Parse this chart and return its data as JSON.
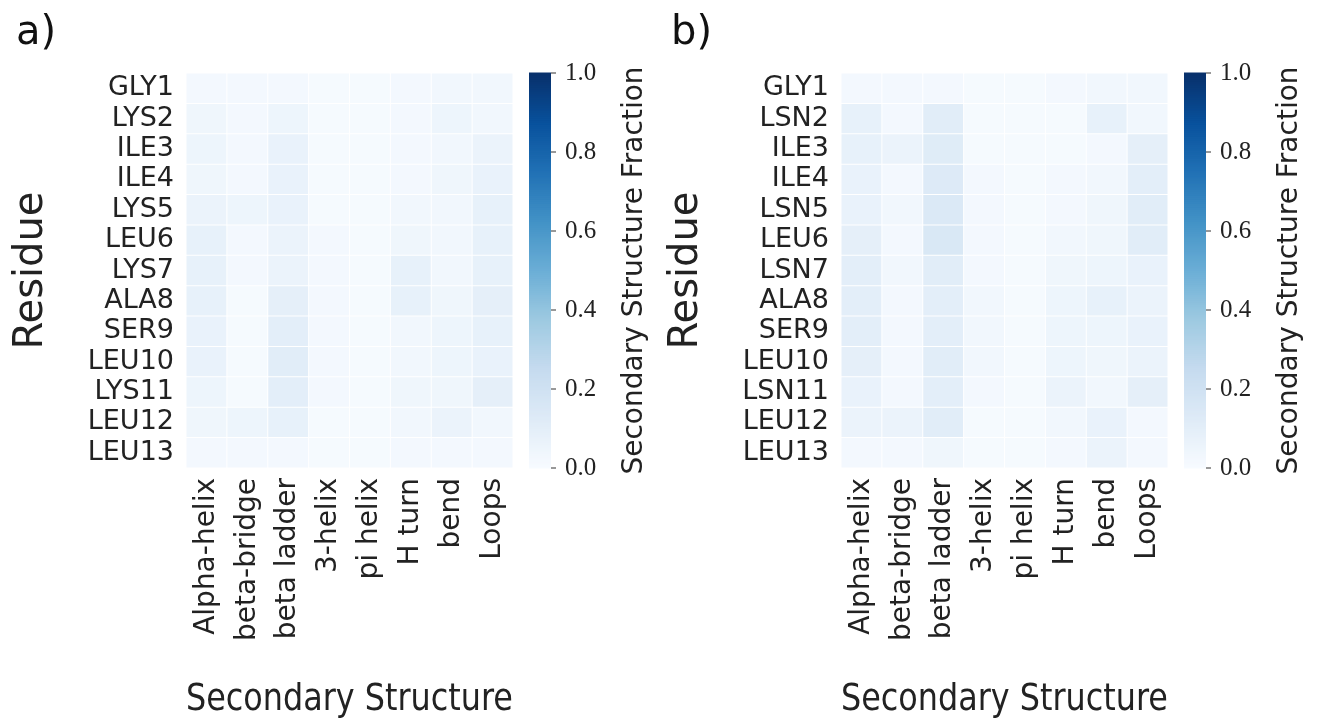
{
  "chart_data": [
    {
      "type": "heatmap",
      "annotations": [
        "a)"
      ],
      "xlabel": "Secondary Structure",
      "ylabel": "Residue",
      "clabel": "Secondary Structure Fraction",
      "categories": [
        "Alpha-helix",
        "beta-bridge",
        "beta ladder",
        "3-helix",
        "pi helix",
        "H turn",
        "bend",
        "Loops"
      ],
      "y_categories": [
        "GLY1",
        "LYS2",
        "ILE3",
        "ILE4",
        "LYS5",
        "LEU6",
        "LYS7",
        "ALA8",
        "SER9",
        "LEU10",
        "LYS11",
        "LEU12",
        "LEU13"
      ],
      "cells": [
        [
          0.02,
          0.02,
          0.02,
          0.01,
          0.01,
          0.02,
          0.03,
          0.03
        ],
        [
          0.04,
          0.02,
          0.05,
          0.01,
          0.01,
          0.02,
          0.05,
          0.03
        ],
        [
          0.05,
          0.02,
          0.07,
          0.01,
          0.01,
          0.02,
          0.03,
          0.06
        ],
        [
          0.04,
          0.02,
          0.07,
          0.01,
          0.01,
          0.02,
          0.04,
          0.07
        ],
        [
          0.06,
          0.05,
          0.07,
          0.01,
          0.01,
          0.03,
          0.03,
          0.08
        ],
        [
          0.08,
          0.02,
          0.06,
          0.02,
          0.01,
          0.04,
          0.03,
          0.08
        ],
        [
          0.08,
          0.02,
          0.06,
          0.02,
          0.01,
          0.08,
          0.03,
          0.08
        ],
        [
          0.08,
          0.01,
          0.09,
          0.02,
          0.01,
          0.08,
          0.04,
          0.09
        ],
        [
          0.07,
          0.01,
          0.1,
          0.02,
          0.01,
          0.03,
          0.05,
          0.08
        ],
        [
          0.07,
          0.01,
          0.11,
          0.02,
          0.01,
          0.03,
          0.05,
          0.07
        ],
        [
          0.05,
          0.01,
          0.1,
          0.02,
          0.01,
          0.04,
          0.04,
          0.09
        ],
        [
          0.04,
          0.05,
          0.08,
          0.01,
          0.01,
          0.03,
          0.06,
          0.03
        ],
        [
          0.02,
          0.02,
          0.02,
          0.01,
          0.01,
          0.02,
          0.02,
          0.02
        ]
      ],
      "clim": [
        0,
        1
      ],
      "cticks": [
        {
          "value": 0,
          "label": "0.0"
        },
        {
          "value": 0.2,
          "label": "0.2"
        },
        {
          "value": 0.4,
          "label": "0.4"
        },
        {
          "value": 0.6,
          "label": "0.6"
        },
        {
          "value": 0.8,
          "label": "0.8"
        },
        {
          "value": 1,
          "label": "1.0"
        }
      ]
    },
    {
      "type": "heatmap",
      "annotations": [
        "b)"
      ],
      "xlabel": "Secondary Structure",
      "ylabel": "Residue",
      "clabel": "Secondary Structure Fraction",
      "categories": [
        "Alpha-helix",
        "beta-bridge",
        "beta ladder",
        "3-helix",
        "pi helix",
        "H turn",
        "bend",
        "Loops"
      ],
      "y_categories": [
        "GLY1",
        "LSN2",
        "ILE3",
        "ILE4",
        "LSN5",
        "LEU6",
        "LSN7",
        "ALA8",
        "SER9",
        "LEU10",
        "LSN11",
        "LEU12",
        "LEU13"
      ],
      "cells": [
        [
          0.02,
          0.02,
          0.02,
          0.01,
          0.01,
          0.02,
          0.03,
          0.03
        ],
        [
          0.08,
          0.02,
          0.11,
          0.01,
          0.01,
          0.01,
          0.08,
          0.03
        ],
        [
          0.08,
          0.06,
          0.12,
          0.01,
          0.01,
          0.01,
          0.02,
          0.09
        ],
        [
          0.07,
          0.02,
          0.13,
          0.02,
          0.01,
          0.02,
          0.03,
          0.1
        ],
        [
          0.07,
          0.03,
          0.14,
          0.02,
          0.01,
          0.02,
          0.04,
          0.11
        ],
        [
          0.09,
          0.02,
          0.15,
          0.02,
          0.01,
          0.03,
          0.04,
          0.11
        ],
        [
          0.1,
          0.03,
          0.11,
          0.02,
          0.01,
          0.04,
          0.05,
          0.07
        ],
        [
          0.1,
          0.02,
          0.1,
          0.03,
          0.01,
          0.05,
          0.08,
          0.06
        ],
        [
          0.1,
          0.02,
          0.1,
          0.03,
          0.01,
          0.05,
          0.05,
          0.07
        ],
        [
          0.09,
          0.02,
          0.11,
          0.03,
          0.01,
          0.05,
          0.04,
          0.06
        ],
        [
          0.07,
          0.02,
          0.1,
          0.02,
          0.01,
          0.06,
          0.03,
          0.09
        ],
        [
          0.06,
          0.06,
          0.11,
          0.01,
          0.01,
          0.03,
          0.07,
          0.02
        ],
        [
          0.02,
          0.02,
          0.04,
          0.01,
          0.01,
          0.02,
          0.06,
          0.02
        ]
      ],
      "clim": [
        0,
        1
      ],
      "cticks": [
        {
          "value": 0,
          "label": "0.0"
        },
        {
          "value": 0.2,
          "label": "0.2"
        },
        {
          "value": 0.4,
          "label": "0.4"
        },
        {
          "value": 0.6,
          "label": "0.6"
        },
        {
          "value": 0.8,
          "label": "0.8"
        },
        {
          "value": 1,
          "label": "1.0"
        }
      ]
    }
  ]
}
